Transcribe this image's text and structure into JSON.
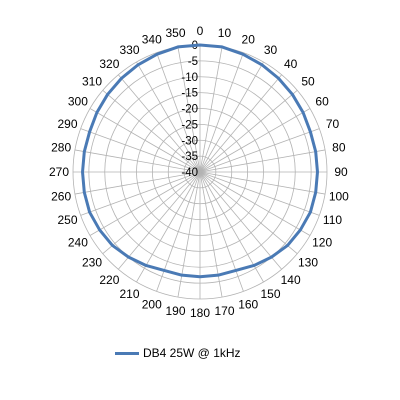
{
  "chart_data": {
    "type": "line",
    "subtype": "polar",
    "angles": [
      0,
      10,
      20,
      30,
      40,
      50,
      60,
      70,
      80,
      90,
      100,
      110,
      120,
      130,
      140,
      150,
      160,
      170,
      180,
      190,
      200,
      210,
      220,
      230,
      240,
      250,
      260,
      270,
      280,
      290,
      300,
      310,
      320,
      330,
      340,
      350
    ],
    "radial_ticks": [
      0,
      -5,
      -10,
      -15,
      -20,
      -25,
      -30,
      -35,
      -40
    ],
    "rlim": [
      -40,
      0
    ],
    "grid": true,
    "legend_position": "bottom",
    "series": [
      {
        "name": "DB4 25W @ 1kHz",
        "color": "#4a7ab5",
        "values": [
          0,
          0,
          -0.5,
          -1,
          -1.5,
          -2,
          -2.5,
          -3,
          -3,
          -3,
          -3,
          -3,
          -3.5,
          -4,
          -5,
          -6,
          -7,
          -7,
          -7,
          -7,
          -7,
          -6,
          -5,
          -4,
          -3.5,
          -3,
          -3,
          -3,
          -3,
          -3,
          -2.5,
          -2,
          -1.5,
          -1,
          -0.5,
          0
        ]
      }
    ]
  }
}
